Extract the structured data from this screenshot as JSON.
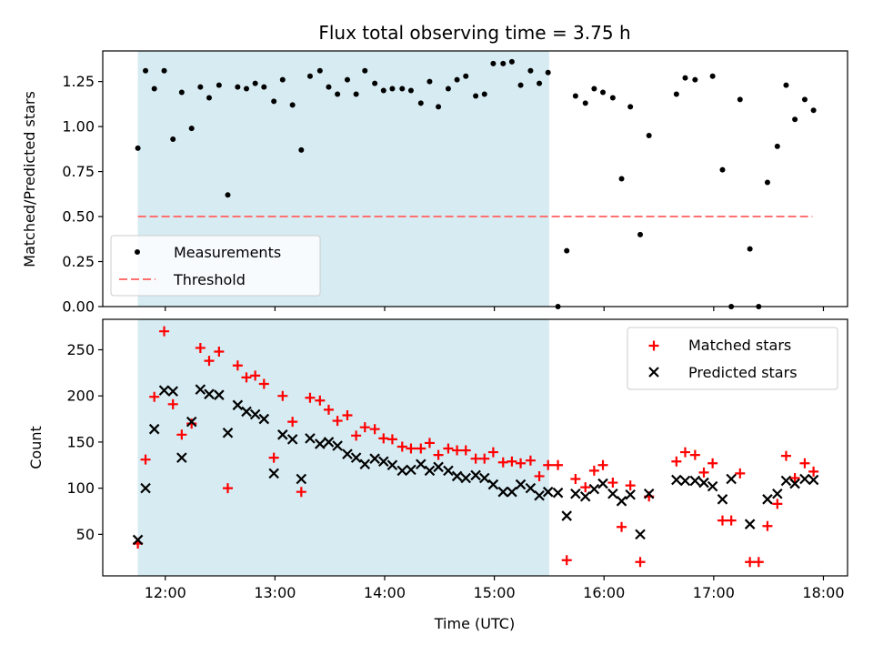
{
  "chart_data": [
    {
      "type": "scatter",
      "title": "Flux total observing time = 3.75 h",
      "xlabel": "",
      "ylabel": "Matched/Predicted stars",
      "xlim": [
        11.43,
        18.22
      ],
      "ylim": [
        0.0,
        1.42
      ],
      "yticks": [
        "0.00",
        "0.25",
        "0.50",
        "0.75",
        "1.00",
        "1.25"
      ],
      "xticks": [
        12,
        13,
        14,
        15,
        16,
        17,
        18
      ],
      "shaded_region": {
        "x": [
          11.75,
          15.5
        ],
        "color": "#add8e6"
      },
      "threshold": {
        "name": "Threshold",
        "value": 0.5,
        "x": [
          11.75,
          17.9
        ],
        "color": "#ff7070"
      },
      "legend_position": "lower-left",
      "series": [
        {
          "name": "Measurements",
          "marker": "dot",
          "color": "#000000",
          "x": [
            11.75,
            11.82,
            11.9,
            11.99,
            12.07,
            12.15,
            12.24,
            12.32,
            12.4,
            12.49,
            12.57,
            12.66,
            12.74,
            12.82,
            12.9,
            12.99,
            13.07,
            13.16,
            13.24,
            13.32,
            13.41,
            13.49,
            13.57,
            13.66,
            13.74,
            13.82,
            13.91,
            13.99,
            14.07,
            14.16,
            14.24,
            14.33,
            14.41,
            14.49,
            14.58,
            14.66,
            14.74,
            14.83,
            14.91,
            14.99,
            15.08,
            15.16,
            15.24,
            15.33,
            15.41,
            15.49,
            15.58,
            15.66,
            15.74,
            15.83,
            15.91,
            15.99,
            16.08,
            16.16,
            16.24,
            16.33,
            16.41,
            16.66,
            16.74,
            16.83,
            16.99,
            17.08,
            17.16,
            17.24,
            17.33,
            17.41,
            17.49,
            17.58,
            17.66,
            17.74,
            17.83,
            17.91
          ],
          "y": [
            0.88,
            1.31,
            1.21,
            1.31,
            0.93,
            1.19,
            0.99,
            1.22,
            1.16,
            1.23,
            0.62,
            1.22,
            1.21,
            1.24,
            1.22,
            1.14,
            1.26,
            1.12,
            0.87,
            1.28,
            1.31,
            1.22,
            1.18,
            1.26,
            1.18,
            1.31,
            1.24,
            1.2,
            1.21,
            1.21,
            1.2,
            1.13,
            1.25,
            1.11,
            1.21,
            1.26,
            1.28,
            1.17,
            1.18,
            1.35,
            1.35,
            1.36,
            1.23,
            1.31,
            1.24,
            1.3,
            0.0,
            0.31,
            1.17,
            1.13,
            1.21,
            1.19,
            1.16,
            0.71,
            1.11,
            0.4,
            0.95,
            1.18,
            1.27,
            1.26,
            1.28,
            0.76,
            0.0,
            1.15,
            0.32,
            0.0,
            0.69,
            0.89,
            1.23,
            1.04,
            1.15,
            1.09
          ]
        }
      ]
    },
    {
      "type": "scatter",
      "title": "",
      "xlabel": "Time (UTC)",
      "ylabel": "Count",
      "xlim": [
        11.43,
        18.22
      ],
      "ylim": [
        5,
        283
      ],
      "yticks": [
        50,
        100,
        150,
        200,
        250
      ],
      "xticks": [
        "12:00",
        "13:00",
        "14:00",
        "15:00",
        "16:00",
        "17:00",
        "18:00"
      ],
      "shaded_region": {
        "x": [
          11.75,
          15.5
        ],
        "color": "#add8e6"
      },
      "legend_position": "upper-right",
      "series": [
        {
          "name": "Matched stars",
          "marker": "plus",
          "color": "#ff0000",
          "x": [
            11.75,
            11.82,
            11.9,
            11.99,
            12.07,
            12.15,
            12.24,
            12.32,
            12.4,
            12.49,
            12.57,
            12.66,
            12.74,
            12.82,
            12.9,
            12.99,
            13.07,
            13.16,
            13.24,
            13.32,
            13.41,
            13.49,
            13.57,
            13.66,
            13.74,
            13.82,
            13.91,
            13.99,
            14.07,
            14.16,
            14.24,
            14.33,
            14.41,
            14.49,
            14.58,
            14.66,
            14.74,
            14.83,
            14.91,
            14.99,
            15.08,
            15.16,
            15.24,
            15.33,
            15.41,
            15.49,
            15.58,
            15.66,
            15.74,
            15.83,
            15.91,
            15.99,
            16.08,
            16.16,
            16.24,
            16.33,
            16.41,
            16.66,
            16.74,
            16.83,
            16.91,
            16.99,
            17.08,
            17.16,
            17.24,
            17.33,
            17.41,
            17.49,
            17.58,
            17.66,
            17.74,
            17.83,
            17.91
          ],
          "y": [
            40,
            131,
            199,
            270,
            191,
            158,
            170,
            252,
            238,
            248,
            100,
            233,
            220,
            222,
            213,
            133,
            200,
            172,
            96,
            198,
            195,
            185,
            173,
            179,
            157,
            166,
            164,
            154,
            153,
            145,
            143,
            143,
            149,
            136,
            143,
            141,
            141,
            132,
            132,
            139,
            128,
            129,
            127,
            130,
            113,
            125,
            125,
            22,
            110,
            101,
            119,
            125,
            106,
            58,
            103,
            20,
            91,
            129,
            139,
            136,
            117,
            127,
            65,
            65,
            116,
            20,
            20,
            59,
            83,
            135,
            111,
            127,
            118
          ]
        },
        {
          "name": "Predicted stars",
          "marker": "x",
          "color": "#000000",
          "x": [
            11.75,
            11.82,
            11.9,
            11.99,
            12.07,
            12.15,
            12.24,
            12.32,
            12.4,
            12.49,
            12.57,
            12.66,
            12.74,
            12.82,
            12.9,
            12.99,
            13.07,
            13.16,
            13.24,
            13.32,
            13.41,
            13.49,
            13.57,
            13.66,
            13.74,
            13.82,
            13.91,
            13.99,
            14.07,
            14.16,
            14.24,
            14.33,
            14.41,
            14.49,
            14.58,
            14.66,
            14.74,
            14.83,
            14.91,
            14.99,
            15.08,
            15.16,
            15.24,
            15.33,
            15.41,
            15.49,
            15.58,
            15.66,
            15.74,
            15.83,
            15.91,
            15.99,
            16.08,
            16.16,
            16.24,
            16.33,
            16.41,
            16.66,
            16.74,
            16.83,
            16.91,
            16.99,
            17.08,
            17.16,
            17.33,
            17.49,
            17.58,
            17.66,
            17.74,
            17.83,
            17.91
          ],
          "y": [
            44,
            100,
            164,
            206,
            205,
            133,
            172,
            207,
            202,
            201,
            160,
            190,
            183,
            180,
            175,
            116,
            158,
            153,
            110,
            154,
            148,
            150,
            146,
            137,
            133,
            126,
            132,
            129,
            125,
            119,
            120,
            126,
            119,
            123,
            119,
            113,
            111,
            114,
            111,
            104,
            96,
            96,
            104,
            100,
            92,
            96,
            95,
            70,
            94,
            91,
            99,
            105,
            94,
            86,
            93,
            50,
            94,
            109,
            108,
            108,
            106,
            102,
            88,
            110,
            61,
            88,
            94,
            108,
            105,
            110,
            109
          ]
        }
      ]
    }
  ]
}
